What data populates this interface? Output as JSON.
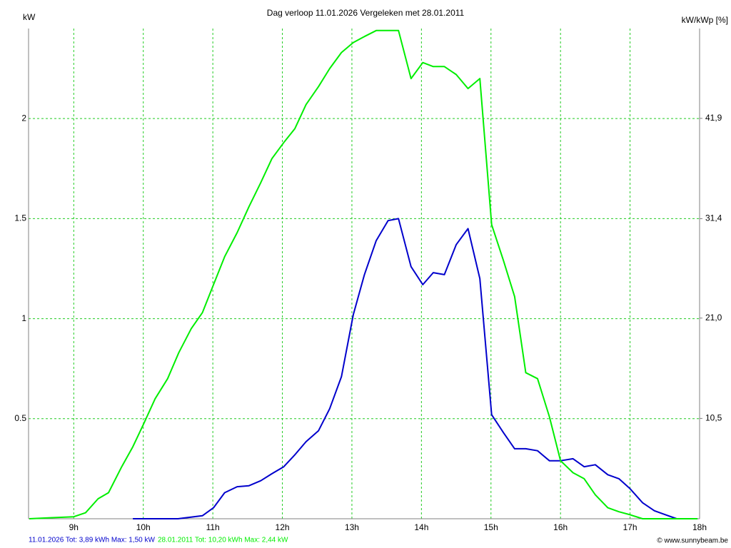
{
  "chart_data": {
    "type": "line",
    "title": "Dag  verloop 11.01.2026   Vergeleken met 28.01.2011",
    "y_label": "kW",
    "y2_label": "kW/kWp [%]",
    "credit": "© www.sunnybeam.be",
    "grid": true,
    "xlim": [
      8.35,
      18
    ],
    "xticks": [
      {
        "value": 9,
        "label": "9h"
      },
      {
        "value": 10,
        "label": "10h"
      },
      {
        "value": 11,
        "label": "11h"
      },
      {
        "value": 12,
        "label": "12h"
      },
      {
        "value": 13,
        "label": "13h"
      },
      {
        "value": 14,
        "label": "14h"
      },
      {
        "value": 15,
        "label": "15h"
      },
      {
        "value": 16,
        "label": "16h"
      },
      {
        "value": 17,
        "label": "17h"
      },
      {
        "value": 18,
        "label": "18h"
      }
    ],
    "ylim": [
      0,
      2.45
    ],
    "yticks": [
      0.5,
      1,
      1.5,
      2
    ],
    "y2lim": [
      0,
      51.3
    ],
    "y2ticks": [
      {
        "value": 10.5,
        "label": "10,5"
      },
      {
        "value": 21.0,
        "label": "21,0"
      },
      {
        "value": 31.4,
        "label": "31,4"
      },
      {
        "value": 41.9,
        "label": "41,9"
      }
    ],
    "series": [
      {
        "name": "11.01.2026 Tot: 3,89 kWh Max: 1,50 kW",
        "color": "#0000cc",
        "x": [
          9.85,
          10.5,
          10.85,
          11.01,
          11.17,
          11.35,
          11.52,
          11.69,
          11.85,
          12.02,
          12.18,
          12.34,
          12.52,
          12.68,
          12.85,
          13.02,
          13.18,
          13.35,
          13.52,
          13.67,
          13.85,
          14.02,
          14.17,
          14.33,
          14.5,
          14.67,
          14.84,
          15.01,
          15.18,
          15.34,
          15.5,
          15.67,
          15.84,
          16.0,
          16.18,
          16.34,
          16.5,
          16.68,
          16.84,
          17.0,
          17.18,
          17.35,
          17.51,
          17.67,
          17.97
        ],
        "values": [
          0,
          0,
          0.015,
          0.055,
          0.13,
          0.16,
          0.165,
          0.19,
          0.225,
          0.26,
          0.32,
          0.385,
          0.44,
          0.55,
          0.71,
          1.02,
          1.22,
          1.39,
          1.49,
          1.5,
          1.26,
          1.17,
          1.23,
          1.22,
          1.37,
          1.45,
          1.2,
          0.52,
          0.43,
          0.35,
          0.35,
          0.34,
          0.29,
          0.29,
          0.3,
          0.26,
          0.27,
          0.22,
          0.2,
          0.15,
          0.08,
          0.04,
          0.02,
          0,
          0
        ]
      },
      {
        "name": "28.01.2011 Tot: 10,20 kWh Max: 2,44 kW",
        "color": "#00ee00",
        "x": [
          8.36,
          8.66,
          9.0,
          9.17,
          9.35,
          9.5,
          9.69,
          9.85,
          10.0,
          10.17,
          10.35,
          10.51,
          10.69,
          10.85,
          11.01,
          11.17,
          11.35,
          11.52,
          11.69,
          11.85,
          12.02,
          12.18,
          12.34,
          12.52,
          12.68,
          12.85,
          13.02,
          13.18,
          13.35,
          13.52,
          13.67,
          13.85,
          14.02,
          14.17,
          14.33,
          14.5,
          14.67,
          14.84,
          15.01,
          15.18,
          15.34,
          15.5,
          15.67,
          15.84,
          16.0,
          16.18,
          16.34,
          16.5,
          16.68,
          16.84,
          17.0,
          17.18,
          17.97
        ],
        "values": [
          0,
          0.005,
          0.01,
          0.03,
          0.1,
          0.13,
          0.26,
          0.36,
          0.47,
          0.6,
          0.7,
          0.83,
          0.95,
          1.03,
          1.17,
          1.31,
          1.43,
          1.56,
          1.68,
          1.8,
          1.88,
          1.95,
          2.07,
          2.16,
          2.25,
          2.33,
          2.38,
          2.41,
          2.44,
          2.44,
          2.44,
          2.2,
          2.28,
          2.26,
          2.26,
          2.22,
          2.15,
          2.2,
          1.47,
          1.29,
          1.11,
          0.73,
          0.7,
          0.51,
          0.29,
          0.23,
          0.2,
          0.12,
          0.055,
          0.035,
          0.02,
          0,
          0
        ]
      }
    ]
  }
}
